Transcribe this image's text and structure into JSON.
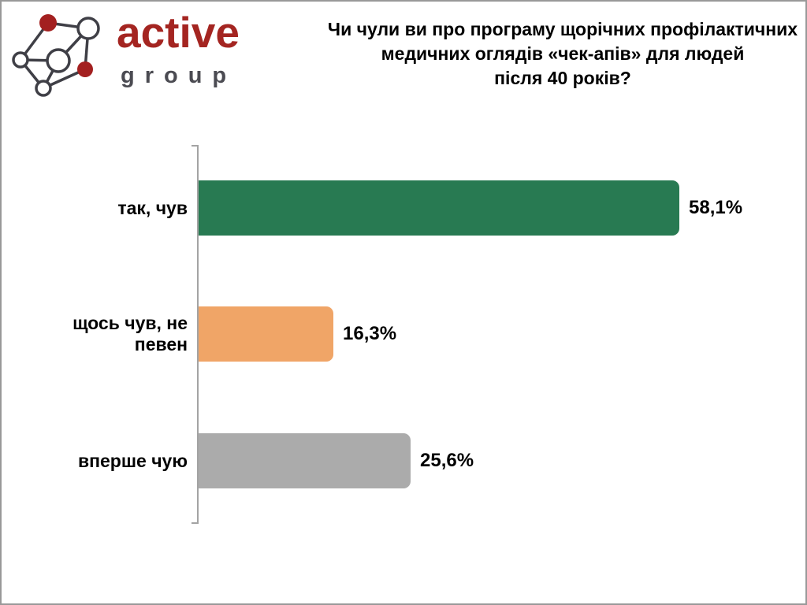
{
  "logo": {
    "brand_primary": "active",
    "brand_secondary": "group",
    "brand_color": "#A42521",
    "secondary_color": "#4B4B52",
    "node_red": "#A32020",
    "line_color": "#3F3F46"
  },
  "title": {
    "lines": [
      "Чи чули ви про програму щорічних профілактичних",
      "медичних оглядів «чек-апів» для людей",
      "після 40 років?"
    ],
    "text": "Чи чули ви про програму щорічних профілактичних медичних оглядів «чек-апів» для людей після 40 років?"
  },
  "chart_data": {
    "type": "bar",
    "orientation": "horizontal",
    "title": "Чи чули ви про програму щорічних профілактичних медичних оглядів «чек-апів» для людей після 40 років?",
    "categories": [
      "так, чув",
      "щось чув, не певен",
      "вперше чую"
    ],
    "values": [
      58.1,
      16.3,
      25.6
    ],
    "value_labels": [
      "58,1%",
      "16,3%",
      "25,6%"
    ],
    "colors": [
      "#287A52",
      "#F0A567",
      "#ABABAB"
    ],
    "xlabel": "",
    "ylabel": "",
    "xlim": [
      0,
      100
    ],
    "grid": false,
    "legend": false,
    "axis_color": "#A3A3A3"
  }
}
